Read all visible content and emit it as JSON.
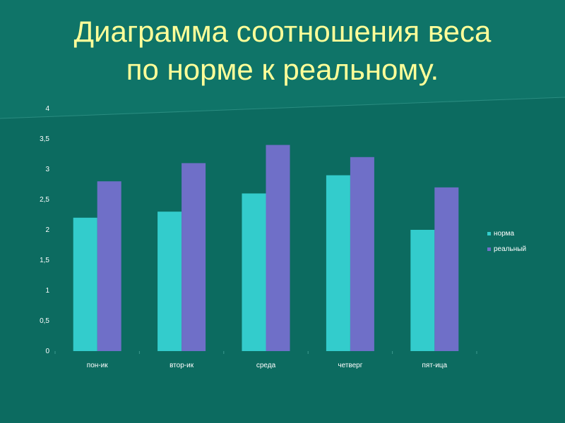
{
  "slide": {
    "title_line1": "Диаграмма соотношения веса",
    "title_line2": "по норме к реальному."
  },
  "colors": {
    "background": "#0f7468",
    "title": "#ffff99",
    "norm": "#33cccc",
    "real": "#6f6fc8"
  },
  "chart_data": {
    "type": "bar",
    "categories": [
      "пон-ик",
      "втор-ик",
      "среда",
      "четверг",
      "пят-ица"
    ],
    "series": [
      {
        "name": "норма",
        "values": [
          2.2,
          2.3,
          2.6,
          2.9,
          2.0
        ]
      },
      {
        "name": "реальный",
        "values": [
          2.8,
          3.1,
          3.4,
          3.2,
          2.7
        ]
      }
    ],
    "yticks": [
      "0",
      "0,5",
      "1",
      "1,5",
      "2",
      "2,5",
      "3",
      "3,5",
      "4"
    ],
    "ylim": [
      0,
      4
    ],
    "legend_position": "right",
    "grid": false
  }
}
